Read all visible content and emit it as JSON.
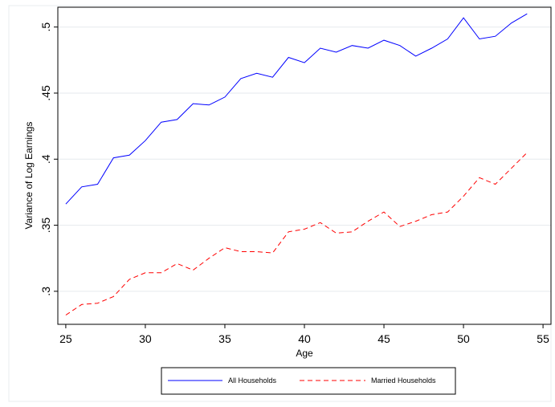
{
  "chart_data": {
    "type": "line",
    "xlabel": "Age",
    "ylabel": "Variance of Log Earnings",
    "xlim": [
      24.5,
      55.5
    ],
    "ylim": [
      0.275,
      0.515
    ],
    "xticks": [
      25,
      30,
      35,
      40,
      45,
      50,
      55
    ],
    "yticks": [
      0.3,
      0.35,
      0.4,
      0.45,
      0.5
    ],
    "xtick_labels": [
      "25",
      "30",
      "35",
      "40",
      "45",
      "50",
      "55"
    ],
    "ytick_labels": [
      ".3",
      ".35",
      ".4",
      ".45",
      ".5"
    ],
    "grid": "horizontal",
    "legend_position": "bottom",
    "x": [
      25,
      26,
      27,
      28,
      29,
      30,
      31,
      32,
      33,
      34,
      35,
      36,
      37,
      38,
      39,
      40,
      41,
      42,
      43,
      44,
      45,
      46,
      47,
      48,
      49,
      50,
      51,
      52,
      53,
      54
    ],
    "series": [
      {
        "name": "All Households",
        "color": "#0000ff",
        "style": "solid",
        "values": [
          0.366,
          0.379,
          0.381,
          0.401,
          0.403,
          0.414,
          0.428,
          0.43,
          0.442,
          0.441,
          0.447,
          0.461,
          0.465,
          0.462,
          0.477,
          0.473,
          0.484,
          0.481,
          0.486,
          0.484,
          0.49,
          0.486,
          0.478,
          0.484,
          0.491,
          0.507,
          0.491,
          0.493,
          0.503,
          0.51
        ]
      },
      {
        "name": "Married Households",
        "color": "#ff0000",
        "style": "dashed",
        "values": [
          0.282,
          0.29,
          0.291,
          0.296,
          0.309,
          0.314,
          0.314,
          0.321,
          0.316,
          0.325,
          0.333,
          0.33,
          0.33,
          0.329,
          0.345,
          0.347,
          0.352,
          0.344,
          0.345,
          0.353,
          0.36,
          0.349,
          0.353,
          0.358,
          0.36,
          0.372,
          0.386,
          0.381,
          0.393,
          0.405
        ]
      }
    ]
  }
}
